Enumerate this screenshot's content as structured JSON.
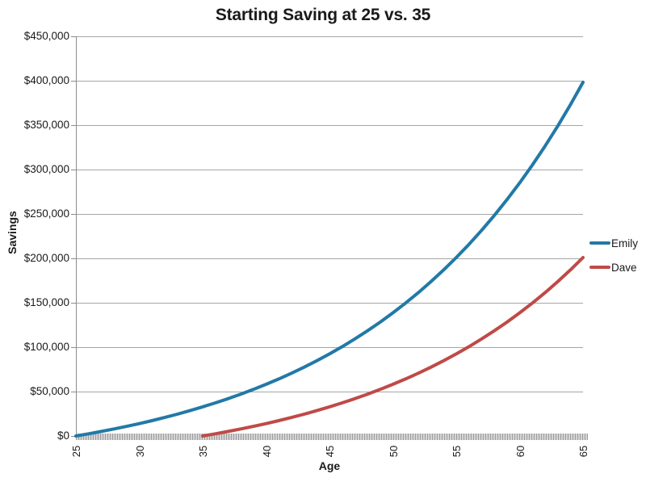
{
  "chart_data": {
    "type": "line",
    "title": "Starting Saving at 25 vs. 35",
    "xlabel": "Age",
    "ylabel": "Savings",
    "xlim": [
      25,
      65
    ],
    "ylim": [
      0,
      450000
    ],
    "x_ticks": [
      25,
      30,
      35,
      40,
      45,
      50,
      55,
      60,
      65
    ],
    "y_ticks": [
      0,
      50000,
      100000,
      150000,
      200000,
      250000,
      300000,
      350000,
      400000,
      450000
    ],
    "y_tick_labels": [
      "$0",
      "$50,000",
      "$100,000",
      "$150,000",
      "$200,000",
      "$250,000",
      "$300,000",
      "$350,000",
      "$400,000",
      "$450,000"
    ],
    "grid": "horizontal",
    "legend_position": "right",
    "series": [
      {
        "name": "Emily",
        "color": "#2279A7",
        "start_age": 25,
        "ages": [
          25,
          26,
          27,
          28,
          29,
          30,
          31,
          32,
          33,
          34,
          35,
          36,
          37,
          38,
          39,
          40,
          41,
          42,
          43,
          44,
          45,
          46,
          47,
          48,
          49,
          50,
          51,
          52,
          53,
          54,
          55,
          56,
          57,
          58,
          59,
          60,
          61,
          62,
          63,
          64,
          65
        ],
        "values": [
          0,
          2467,
          5086,
          7867,
          10820,
          13954,
          17282,
          20815,
          24566,
          28548,
          32776,
          37265,
          42030,
          47089,
          52461,
          58164,
          64219,
          70648,
          77474,
          84720,
          92408,
          100575,
          109245,
          118451,
          128223,
          138599,
          149614,
          161309,
          173725,
          186907,
          200903,
          215759,
          231534,
          248281,
          266061,
          284942,
          304979,
          326256,
          348845,
          372828,
          398298
        ]
      },
      {
        "name": "Dave",
        "color": "#BF4A47",
        "start_age": 35,
        "ages": [
          35,
          36,
          37,
          38,
          39,
          40,
          41,
          42,
          43,
          44,
          45,
          46,
          47,
          48,
          49,
          50,
          51,
          52,
          53,
          54,
          55,
          56,
          57,
          58,
          59,
          60,
          61,
          62,
          63,
          64,
          65
        ],
        "values": [
          0,
          2467,
          5086,
          7867,
          10820,
          13954,
          17282,
          20815,
          24566,
          28548,
          32776,
          37265,
          42030,
          47089,
          52461,
          58164,
          64219,
          70648,
          77474,
          84720,
          92408,
          100575,
          109245,
          118451,
          128223,
          138599,
          149614,
          161309,
          173725,
          186907,
          200903
        ]
      }
    ]
  },
  "colors": {
    "emily_line": "#2279A7",
    "dave_line": "#BF4A47",
    "gridline": "#A6A6A6",
    "axis_line": "#8C8C8C",
    "band_dark": "#9E9E9E",
    "band_light": "#D4D4D4",
    "text": "#1A1A1A"
  }
}
